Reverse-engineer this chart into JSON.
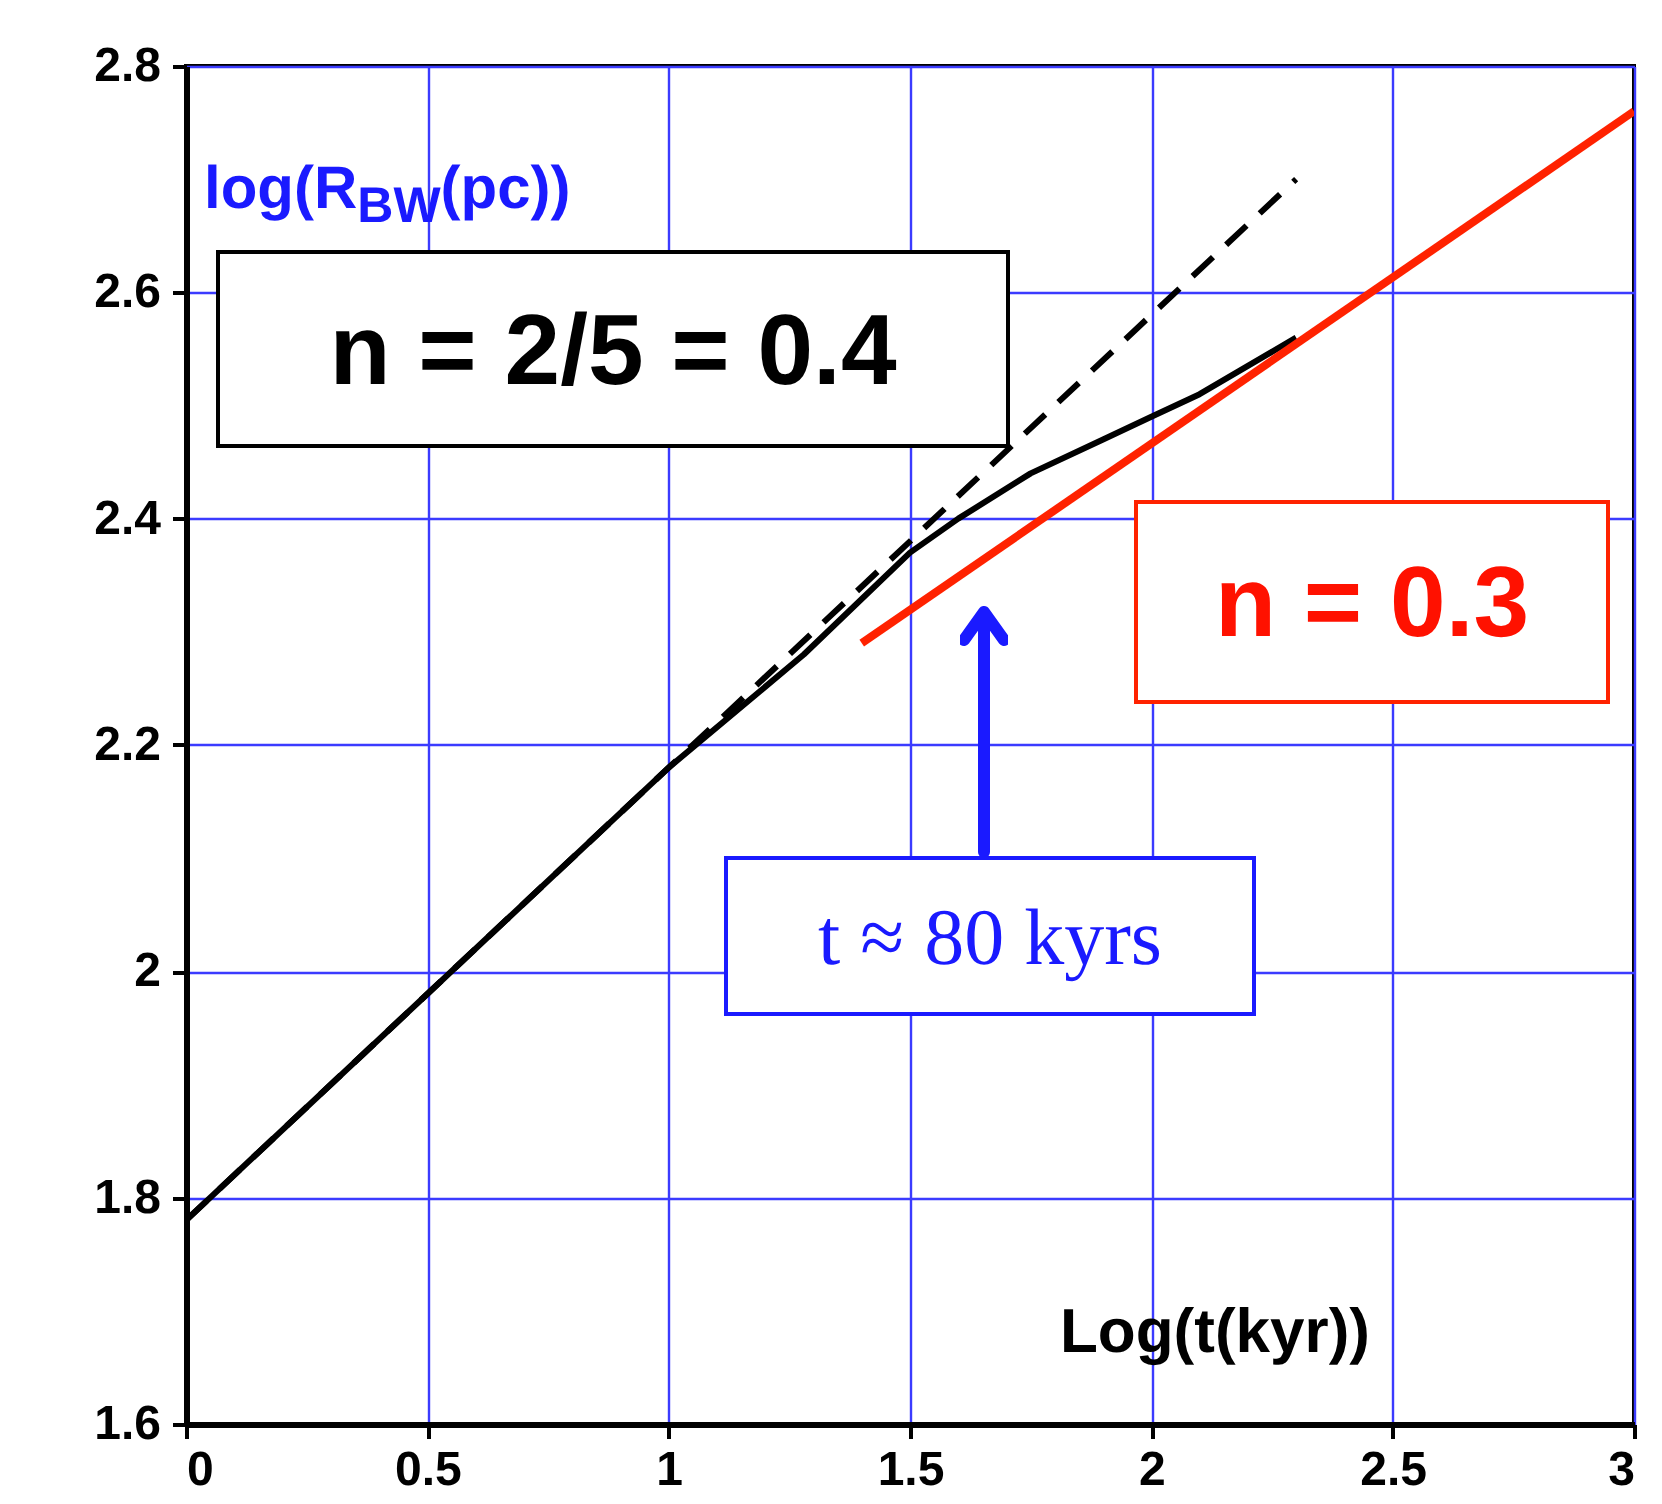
{
  "chart_data": {
    "type": "line",
    "xlabel": "Log(t(kyr))",
    "ylabel": "log(R$_{BW}$(pc))",
    "series": [
      {
        "color": "#000000",
        "line_style": "solid",
        "x": [
          0,
          0.5,
          1,
          1.28,
          1.5,
          1.6,
          1.75,
          1.9,
          2.0,
          2.1,
          2.2,
          2.3
        ],
        "values": [
          1.78,
          1.98,
          2.18,
          2.28,
          2.37,
          2.4,
          2.44,
          2.47,
          2.49,
          2.51,
          2.535,
          2.56
        ]
      },
      {
        "color": "#000000",
        "line_style": "dashed",
        "x": [
          0,
          2.3
        ],
        "values": [
          1.78,
          2.7
        ]
      },
      {
        "color": "#ff2200",
        "line_style": "solid",
        "x": [
          1.4,
          3.0
        ],
        "values": [
          2.29,
          2.76
        ]
      }
    ],
    "annotations": [
      "n = 2/5 = 0.4",
      "n = 0.3",
      "t ≈ 80 kyrs"
    ],
    "xlim": [
      0,
      3
    ],
    "xticks": [
      0,
      0.5,
      1,
      1.5,
      2,
      2.5,
      3
    ],
    "ylim": [
      1.6,
      2.8
    ],
    "yticks": [
      1.6,
      1.8,
      2,
      2.2,
      2.4,
      2.6,
      2.8
    ],
    "grid": true
  }
}
